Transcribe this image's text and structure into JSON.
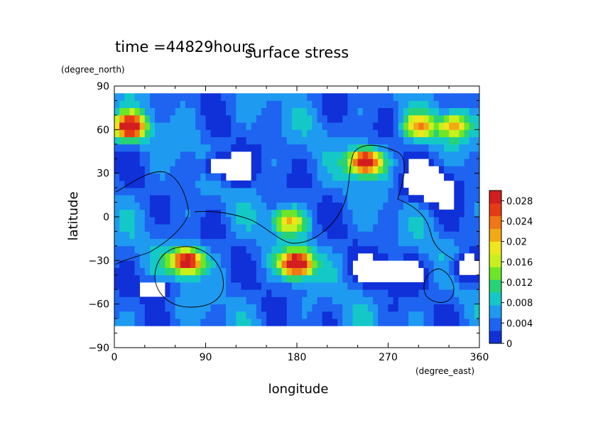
{
  "chart_data": {
    "type": "heatmap",
    "title": "surface stress",
    "subtitle": "time =44829hours",
    "xlabel": "longitude",
    "ylabel": "latitude",
    "xunits": "(degree_east)",
    "yunits": "(degree_north)",
    "xlim": [
      0,
      360
    ],
    "ylim": [
      -90,
      90
    ],
    "xticks": [
      0,
      90,
      180,
      270,
      360
    ],
    "yticks": [
      -90,
      -60,
      -30,
      0,
      30,
      60,
      90
    ],
    "grid": false,
    "colorbar": {
      "min": 0,
      "max": 0.03,
      "tick_labels": [
        "0",
        "0.004",
        "0.008",
        "0.012",
        "0.016",
        "0.02",
        "0.024",
        "0.028"
      ],
      "tick_values": [
        0,
        0.004,
        0.008,
        0.012,
        0.016,
        0.02,
        0.024,
        0.028
      ],
      "colors": [
        "#ffffff",
        "#1030d8",
        "#1e64f0",
        "#1e9af0",
        "#14c8c8",
        "#28d278",
        "#6ee628",
        "#c8f01e",
        "#f0e61e",
        "#f0aa14",
        "#f07814",
        "#e63c14",
        "#d21e1e"
      ]
    },
    "coverage_lat": [
      -75,
      85
    ],
    "hotspots": [
      {
        "lon": 15,
        "lat": 62,
        "value": 0.028
      },
      {
        "lon": 248,
        "lat": 38,
        "value": 0.029
      },
      {
        "lon": 180,
        "lat": -32,
        "value": 0.03
      },
      {
        "lon": 72,
        "lat": -30,
        "value": 0.028
      },
      {
        "lon": 172,
        "lat": -3,
        "value": 0.015
      },
      {
        "lon": 300,
        "lat": 62,
        "value": 0.015
      },
      {
        "lon": 335,
        "lat": 63,
        "value": 0.016
      }
    ]
  }
}
